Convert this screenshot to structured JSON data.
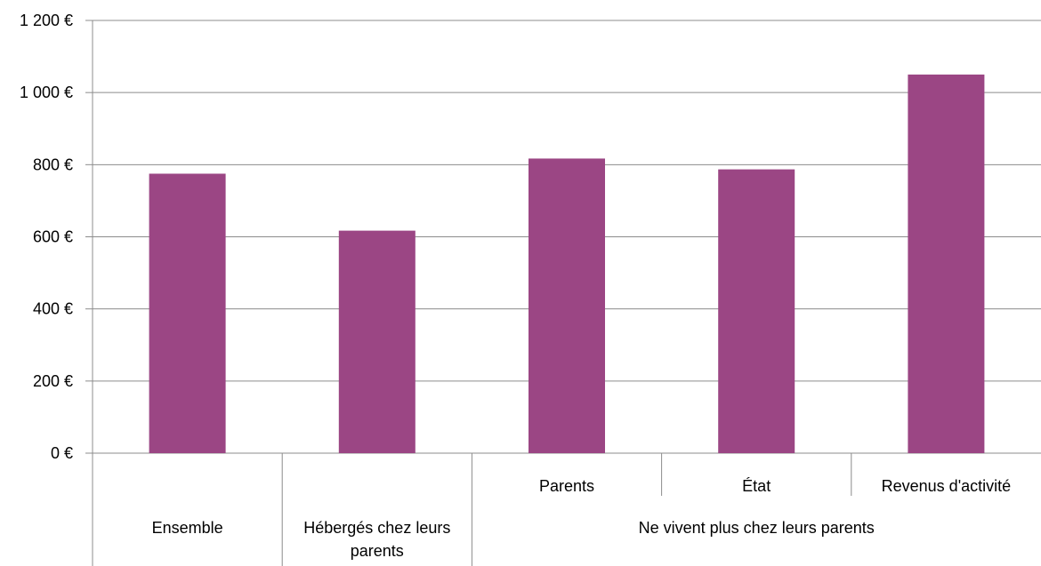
{
  "chart_data": {
    "type": "bar",
    "title": "",
    "xlabel": "",
    "ylabel": "",
    "ylim": [
      0,
      1200
    ],
    "yticks": [
      0,
      200,
      400,
      600,
      800,
      1000,
      1200
    ],
    "ytick_labels": [
      "0 €",
      "200 €",
      "400 €",
      "600 €",
      "800 €",
      "1 000 €",
      "1 200 €"
    ],
    "grid": true,
    "legend": "none",
    "bar_color": "#9B4684",
    "categories": [
      "Ensemble",
      "Hébergés chez leurs parents",
      "Parents",
      "État",
      "Revenus d'activité"
    ],
    "values": [
      775,
      617,
      817,
      787,
      1050
    ],
    "category_levels": {
      "inner": [
        "",
        "",
        "Parents",
        "État",
        "Revenus d'activité"
      ],
      "outer": [
        {
          "label_lines": [
            "Ensemble"
          ],
          "span": 1
        },
        {
          "label_lines": [
            "Hébergés chez leurs",
            "parents"
          ],
          "span": 1
        },
        {
          "label_lines": [
            "Ne vivent plus chez leurs parents"
          ],
          "span": 3
        }
      ]
    }
  }
}
